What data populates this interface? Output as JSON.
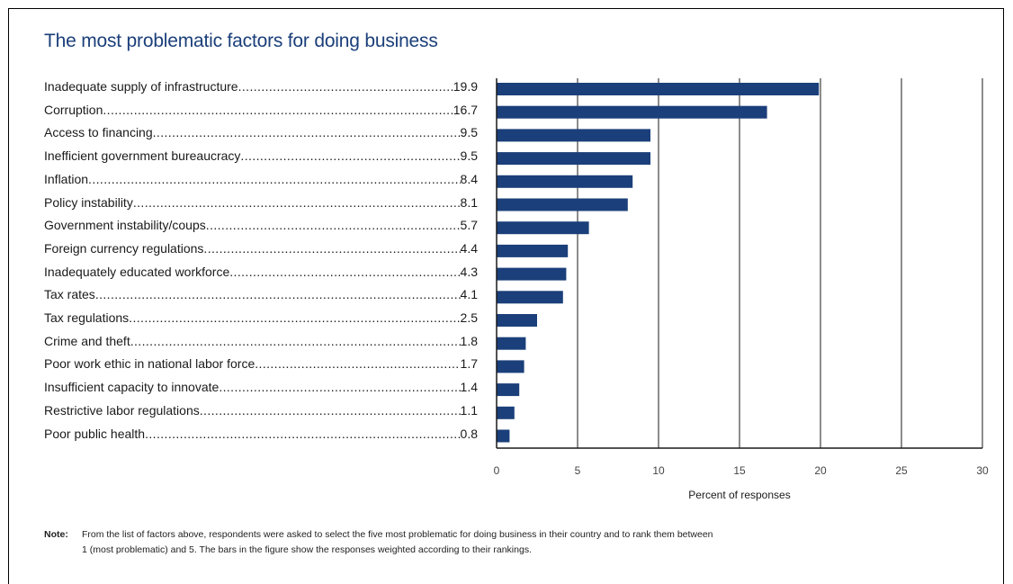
{
  "title": "The most problematic factors for doing business",
  "chart_data": {
    "type": "bar",
    "orientation": "horizontal",
    "title": "The most problematic factors for doing business",
    "categories": [
      "Inadequate supply of infrastructure",
      "Corruption",
      "Access to financing",
      "Inefficient government bureaucracy",
      "Inflation",
      "Policy instability",
      "Government instability/coups",
      "Foreign currency regulations",
      "Inadequately educated workforce",
      "Tax rates",
      "Tax regulations",
      "Crime and theft",
      "Poor work ethic in national labor force",
      "Insufficient capacity to innovate",
      "Restrictive labor regulations",
      "Poor public health"
    ],
    "values": [
      19.9,
      16.7,
      9.5,
      9.5,
      8.4,
      8.1,
      5.7,
      4.4,
      4.3,
      4.1,
      2.5,
      1.8,
      1.7,
      1.4,
      1.1,
      0.8
    ],
    "value_labels": [
      "19.9",
      "16.7",
      "9.5",
      "9.5",
      "8.4",
      "8.1",
      "5.7",
      "4.4",
      "4.3",
      "4.1",
      "2.5",
      "1.8",
      "1.7",
      "1.4",
      "1.1",
      "0.8"
    ],
    "xlabel": "Percent of responses",
    "ylabel": "",
    "xlim": [
      0,
      30
    ],
    "xticks": [
      "0",
      "5",
      "10",
      "15",
      "20",
      "25",
      "30"
    ],
    "grid": true,
    "bar_color": "#1b3f7a"
  },
  "note": {
    "label": "Note:",
    "line1": "From the list of factors above, respondents were asked to select the five most problematic for doing business in their country and to rank them between",
    "line2": "1 (most problematic) and 5. The bars in the figure show the responses weighted according to their rankings."
  }
}
